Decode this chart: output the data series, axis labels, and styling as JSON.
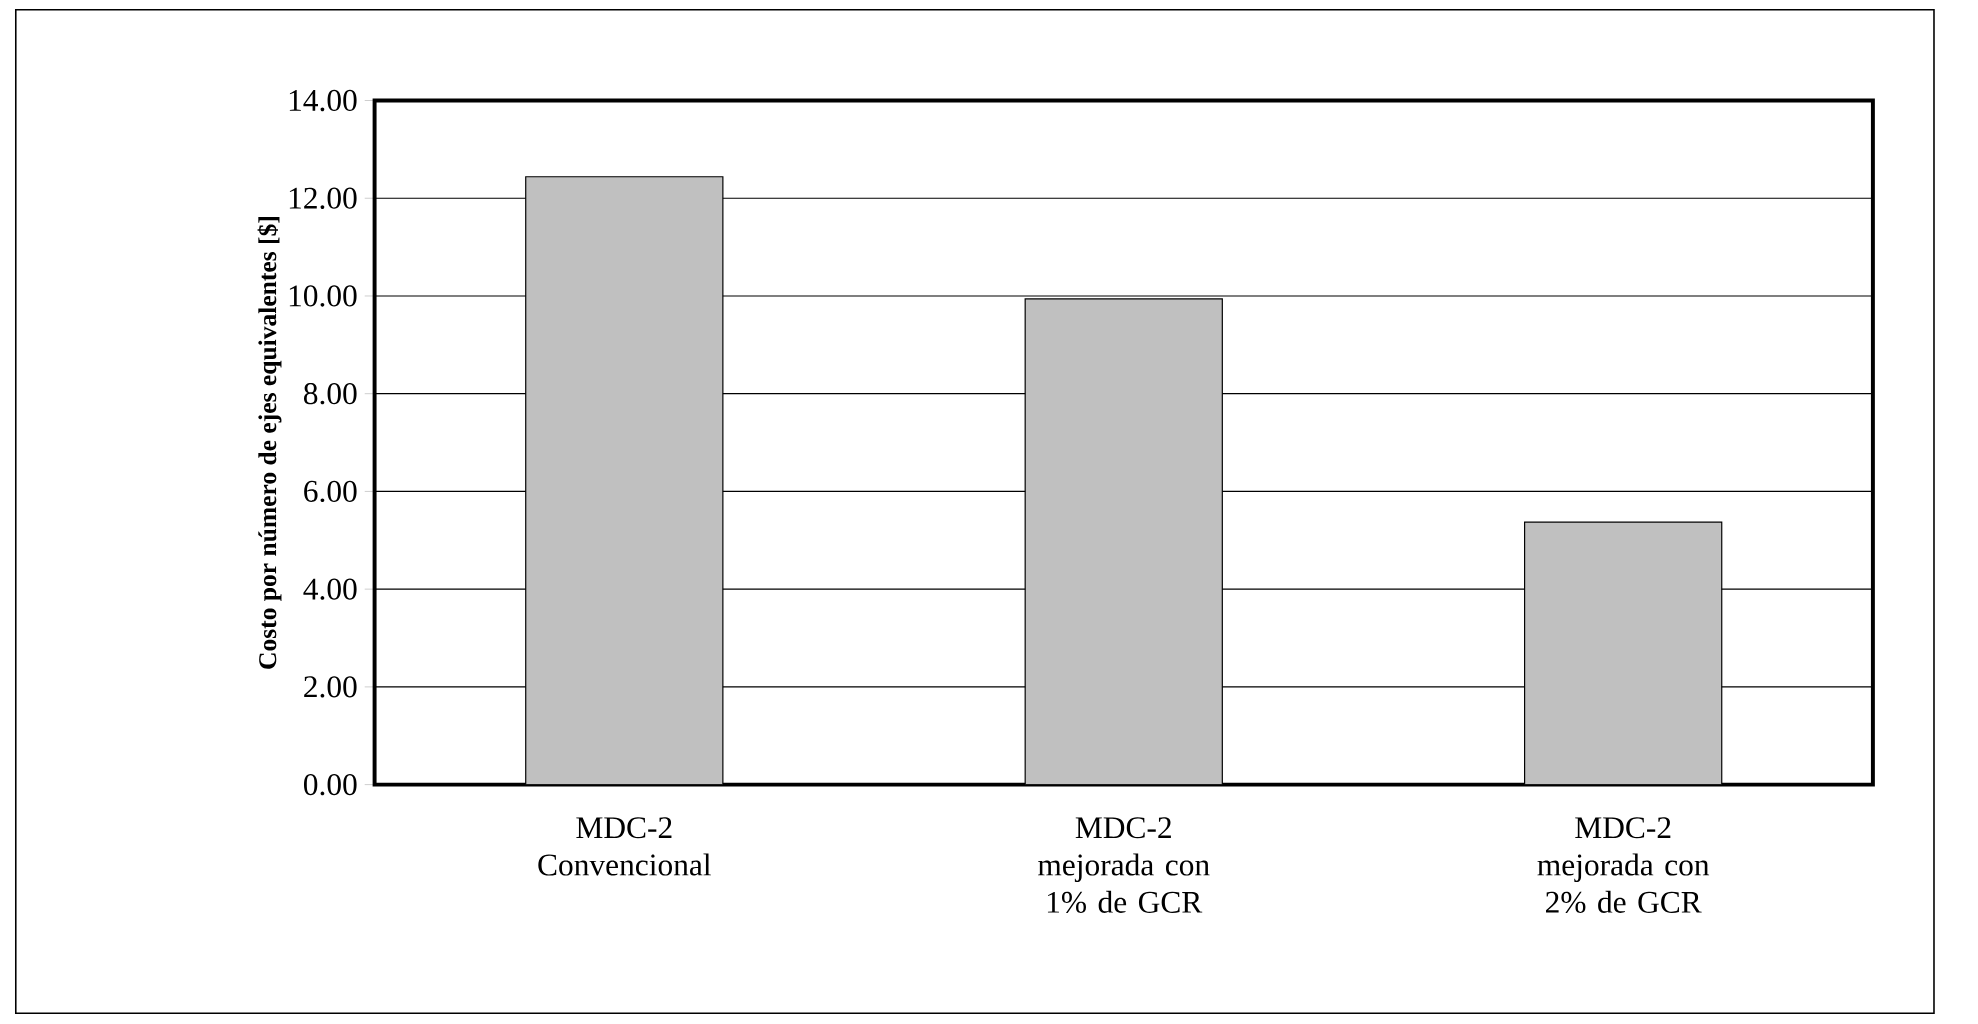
{
  "chart_data": {
    "type": "bar",
    "ylabel": "Costo por número de ejes equivalentes [$]",
    "categories": [
      "MDC-2 Convencional",
      "MDC-2 mejorada con 1% de GCR",
      "MDC-2 mejorada con 2% de GCR"
    ],
    "values": [
      12.44,
      9.94,
      5.37
    ],
    "color": "#c0c0c0",
    "ylim": [
      0,
      14
    ],
    "yticks": [
      {
        "value": 0,
        "label": "0.00"
      },
      {
        "value": 2,
        "label": "2.00"
      },
      {
        "value": 4,
        "label": "4.00"
      },
      {
        "value": 6,
        "label": "6.00"
      },
      {
        "value": 8,
        "label": "8.00"
      },
      {
        "value": 10,
        "label": "10.00"
      },
      {
        "value": 12,
        "label": "12.00"
      },
      {
        "value": 14,
        "label": "14.00"
      }
    ],
    "grid": "y"
  }
}
